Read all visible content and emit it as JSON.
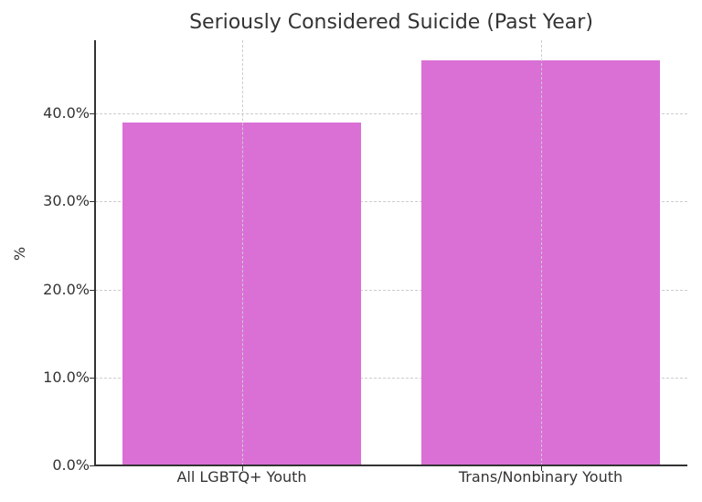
{
  "chart_data": {
    "type": "bar",
    "title": "Seriously Considered Suicide (Past Year)",
    "xlabel": "",
    "ylabel": "%",
    "categories": [
      "All LGBTQ+ Youth",
      "Trans/Nonbinary Youth"
    ],
    "values": [
      39.0,
      46.0
    ],
    "value_format": "percent",
    "ylim": [
      0,
      48.3
    ],
    "yticks": [
      0,
      10,
      20,
      30,
      40
    ],
    "ytick_labels": [
      "0.0%",
      "10.0%",
      "20.0%",
      "30.0%",
      "40.0%"
    ],
    "grid": true,
    "grid_style": "dashed",
    "legend": null,
    "bar_color": "#da70d6"
  },
  "labels": {
    "title": "Seriously Considered Suicide (Past Year)",
    "ylabel": "%",
    "yticks": [
      "0.0%",
      "10.0%",
      "20.0%",
      "30.0%",
      "40.0%"
    ],
    "xticks": [
      "All LGBTQ+ Youth",
      "Trans/Nonbinary Youth"
    ]
  }
}
